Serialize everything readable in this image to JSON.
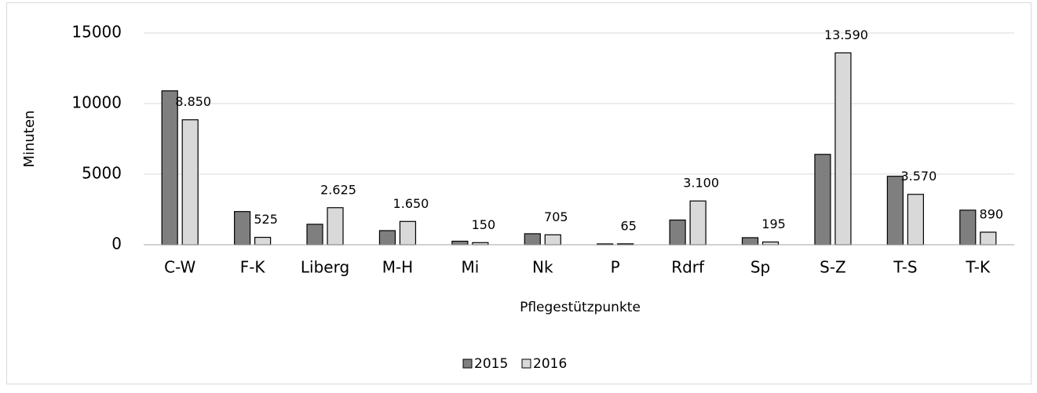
{
  "chart_data": {
    "type": "bar",
    "x_label": "Pflegestützpunkte",
    "y_label": "Minuten",
    "categories": [
      "C-W",
      "F-K",
      "Liberg",
      "M-H",
      "Mi",
      "Nk",
      "P",
      "Rdrf",
      "Sp",
      "S-Z",
      "T-S",
      "T-K"
    ],
    "series": [
      {
        "name": "2015",
        "color": "#7f7f7f",
        "values": [
          10900,
          2350,
          1450,
          1000,
          250,
          780,
          60,
          1750,
          500,
          6400,
          4850,
          2450
        ]
      },
      {
        "name": "2016",
        "color": "#d9d9d9",
        "values": [
          8850,
          525,
          2625,
          1650,
          150,
          705,
          65,
          3100,
          195,
          13590,
          3570,
          890
        ],
        "value_labels": [
          "8.850",
          "525",
          "2.625",
          "1.650",
          "150",
          "705",
          "65",
          "3.100",
          "195",
          "13.590",
          "3.570",
          "890"
        ]
      }
    ],
    "ylim": [
      0,
      15000
    ],
    "yticks": [
      0,
      5000,
      10000,
      15000
    ],
    "grid": true,
    "legend": "bottom"
  }
}
